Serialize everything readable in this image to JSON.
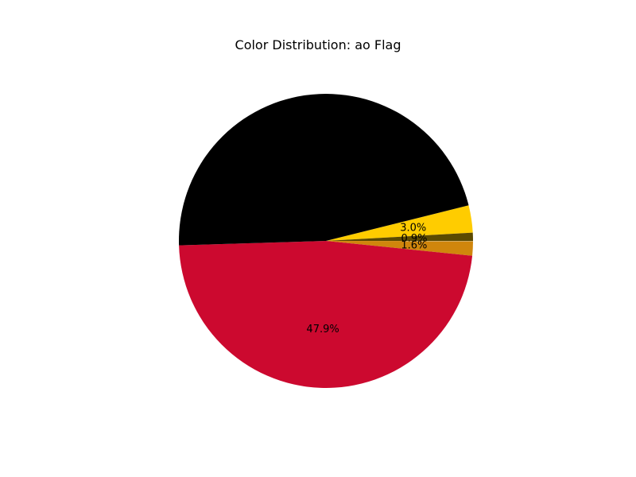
{
  "chart_data": {
    "type": "pie",
    "title": "Color Distribution: ao Flag",
    "slices": [
      {
        "value": 46.6,
        "color": "#000000",
        "label": ""
      },
      {
        "value": 3.0,
        "color": "#ffcc00",
        "label": "3.0%"
      },
      {
        "value": 0.9,
        "color": "#5c4a00",
        "label": "0.9%"
      },
      {
        "value": 1.6,
        "color": "#d0860c",
        "label": "1.6%"
      },
      {
        "value": 47.9,
        "color": "#cc092f",
        "label": "47.9%"
      }
    ]
  }
}
